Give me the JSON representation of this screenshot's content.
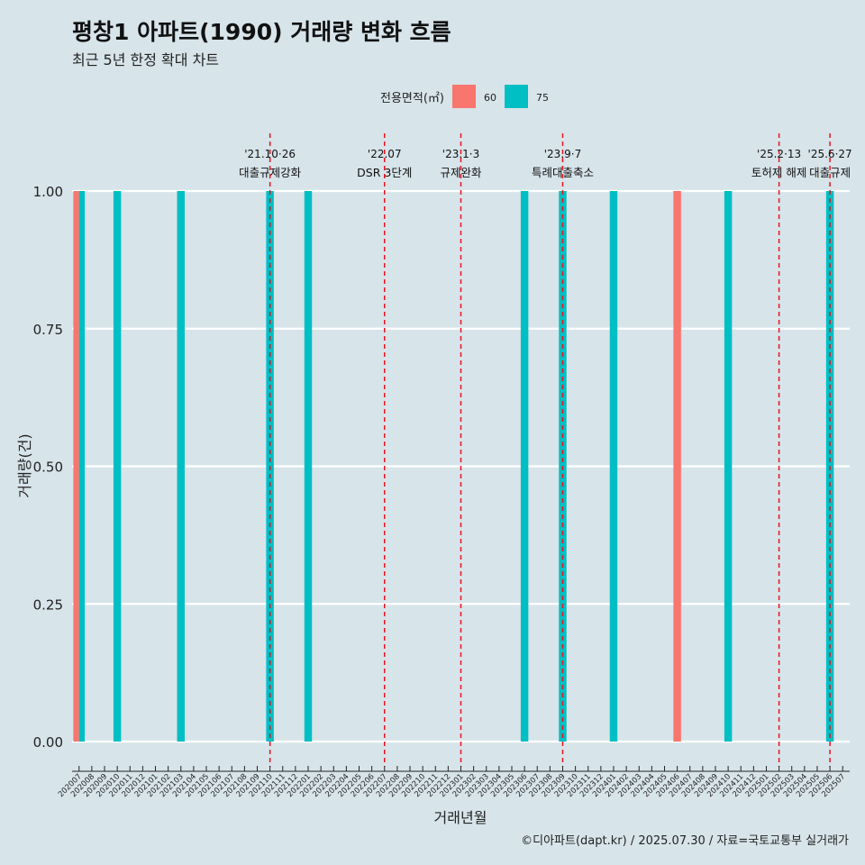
{
  "title": "평창1 아파트(1990) 거래량 변화 흐름",
  "subtitle": "최근 5년 한정 확대 차트",
  "caption": "©디아파트(dapt.kr) / 2025.07.30 / 자료=국토교통부 실거래가",
  "chart_data": {
    "type": "bar",
    "xlabel": "거래년월",
    "ylabel": "거래량(건)",
    "ylim": [
      0,
      1
    ],
    "y_ticks": [
      "0.00",
      "0.25",
      "0.50",
      "0.75",
      "1.00"
    ],
    "grid": "horizontal",
    "legend": {
      "title": "전용면적(㎡)",
      "position": "top",
      "entries": [
        {
          "name": "60",
          "color": "#f8766d"
        },
        {
          "name": "75",
          "color": "#00bfc4"
        }
      ]
    },
    "categories": [
      "202007",
      "202008",
      "202009",
      "202010",
      "202011",
      "202012",
      "202101",
      "202102",
      "202103",
      "202104",
      "202105",
      "202106",
      "202107",
      "202108",
      "202109",
      "202110",
      "202111",
      "202112",
      "202201",
      "202202",
      "202203",
      "202204",
      "202205",
      "202206",
      "202207",
      "202208",
      "202209",
      "202210",
      "202211",
      "202212",
      "202301",
      "202302",
      "202303",
      "202304",
      "202305",
      "202306",
      "202307",
      "202308",
      "202309",
      "202310",
      "202311",
      "202312",
      "202401",
      "202402",
      "202403",
      "202404",
      "202405",
      "202406",
      "202407",
      "202408",
      "202409",
      "202410",
      "202411",
      "202412",
      "202501",
      "202502",
      "202503",
      "202504",
      "202505",
      "202506",
      "202507"
    ],
    "series": [
      {
        "name": "60",
        "color": "#f8766d",
        "points": [
          {
            "x": "202007",
            "y": 1
          },
          {
            "x": "202406",
            "y": 1
          }
        ]
      },
      {
        "name": "75",
        "color": "#00bfc4",
        "points": [
          {
            "x": "202007",
            "y": 1
          },
          {
            "x": "202010",
            "y": 1
          },
          {
            "x": "202103",
            "y": 1
          },
          {
            "x": "202110",
            "y": 1
          },
          {
            "x": "202201",
            "y": 1
          },
          {
            "x": "202306",
            "y": 1
          },
          {
            "x": "202309",
            "y": 1
          },
          {
            "x": "202401",
            "y": 1
          },
          {
            "x": "202410",
            "y": 1
          },
          {
            "x": "202506",
            "y": 1
          }
        ]
      }
    ],
    "annotations": [
      {
        "date": "'21.10·26",
        "label": "대출규제강화",
        "x": "202110"
      },
      {
        "date": "'22.07",
        "label": "DSR 3단계",
        "x": "202207"
      },
      {
        "date": "'23.1·3",
        "label": "규제완화",
        "x": "202301"
      },
      {
        "date": "'23.9·7",
        "label": "특례대출축소",
        "x": "202309"
      },
      {
        "date": "'25.2·13",
        "label": "토허제 해제",
        "x": "202502"
      },
      {
        "date": "'25.6·27",
        "label": "대출규제",
        "x": "202506"
      }
    ]
  }
}
